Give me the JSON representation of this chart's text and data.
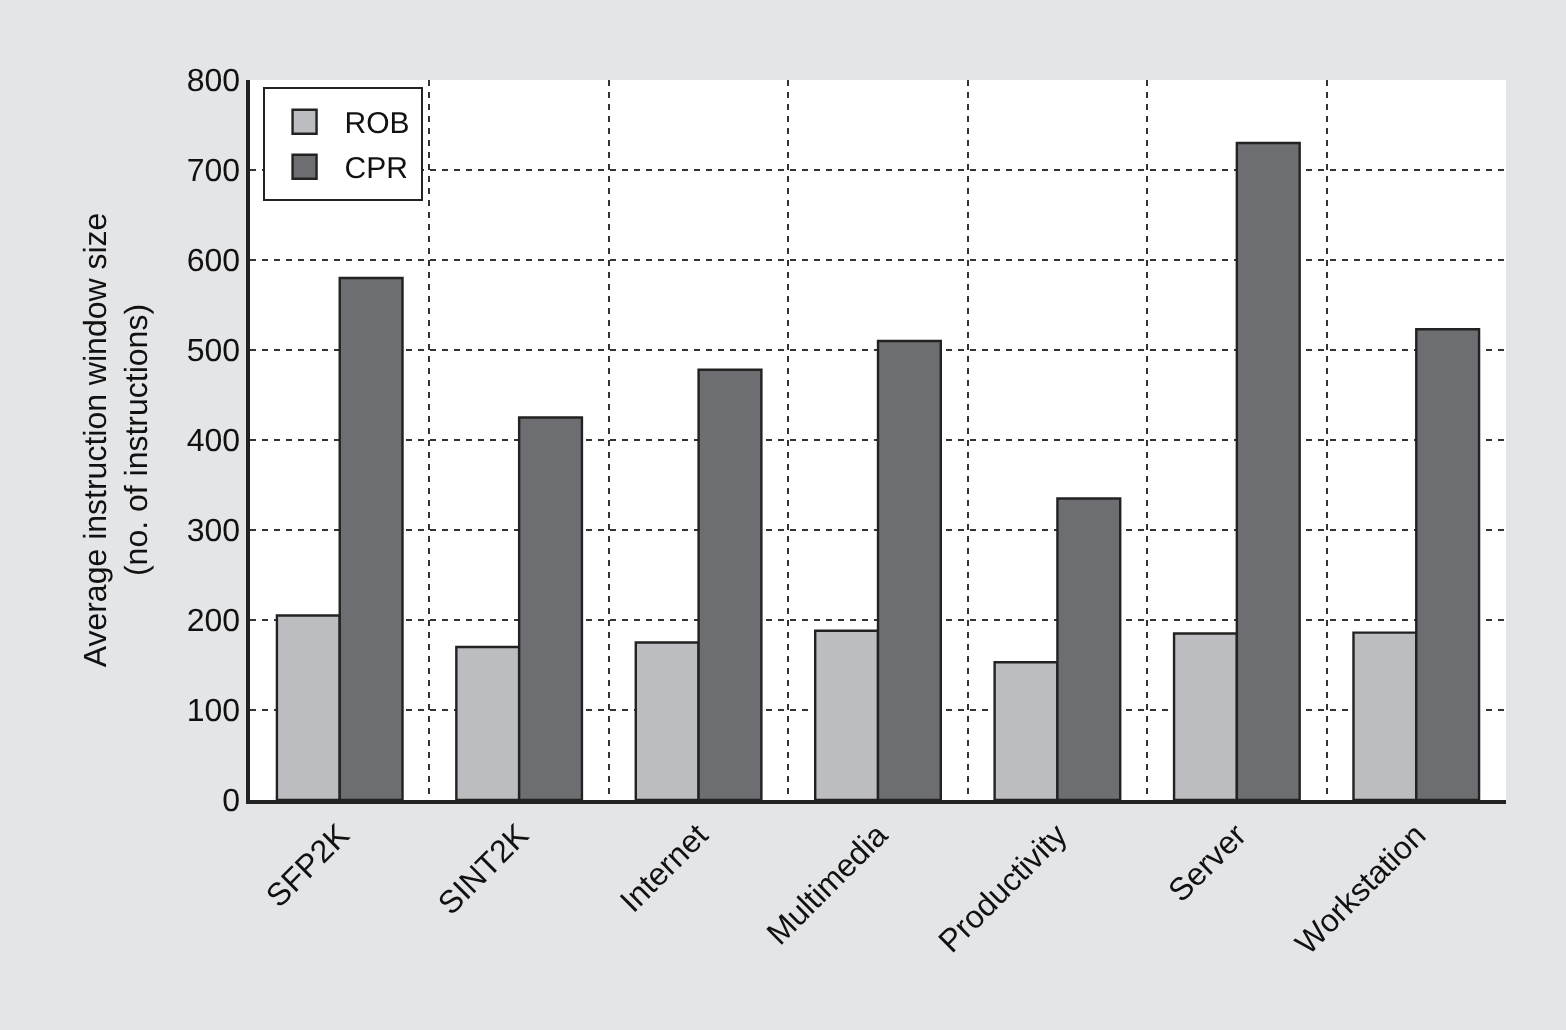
{
  "chart_data": {
    "type": "bar",
    "ylabel": "Average instruction window size\n(no. of instructions)",
    "categories": [
      "SFP2K",
      "SINT2K",
      "Internet",
      "Multimedia",
      "Productivity",
      "Server",
      "Workstation"
    ],
    "series": [
      {
        "name": "ROB",
        "color": "#bcbdc1",
        "values": [
          205,
          170,
          175,
          188,
          153,
          185,
          186
        ]
      },
      {
        "name": "CPR",
        "color": "#6d6e72",
        "values": [
          580,
          425,
          478,
          510,
          335,
          730,
          523
        ]
      }
    ],
    "ylim": [
      0,
      800
    ],
    "yticks": [
      0,
      100,
      200,
      300,
      400,
      500,
      600,
      700,
      800
    ],
    "grid": true,
    "legend": "top left"
  }
}
